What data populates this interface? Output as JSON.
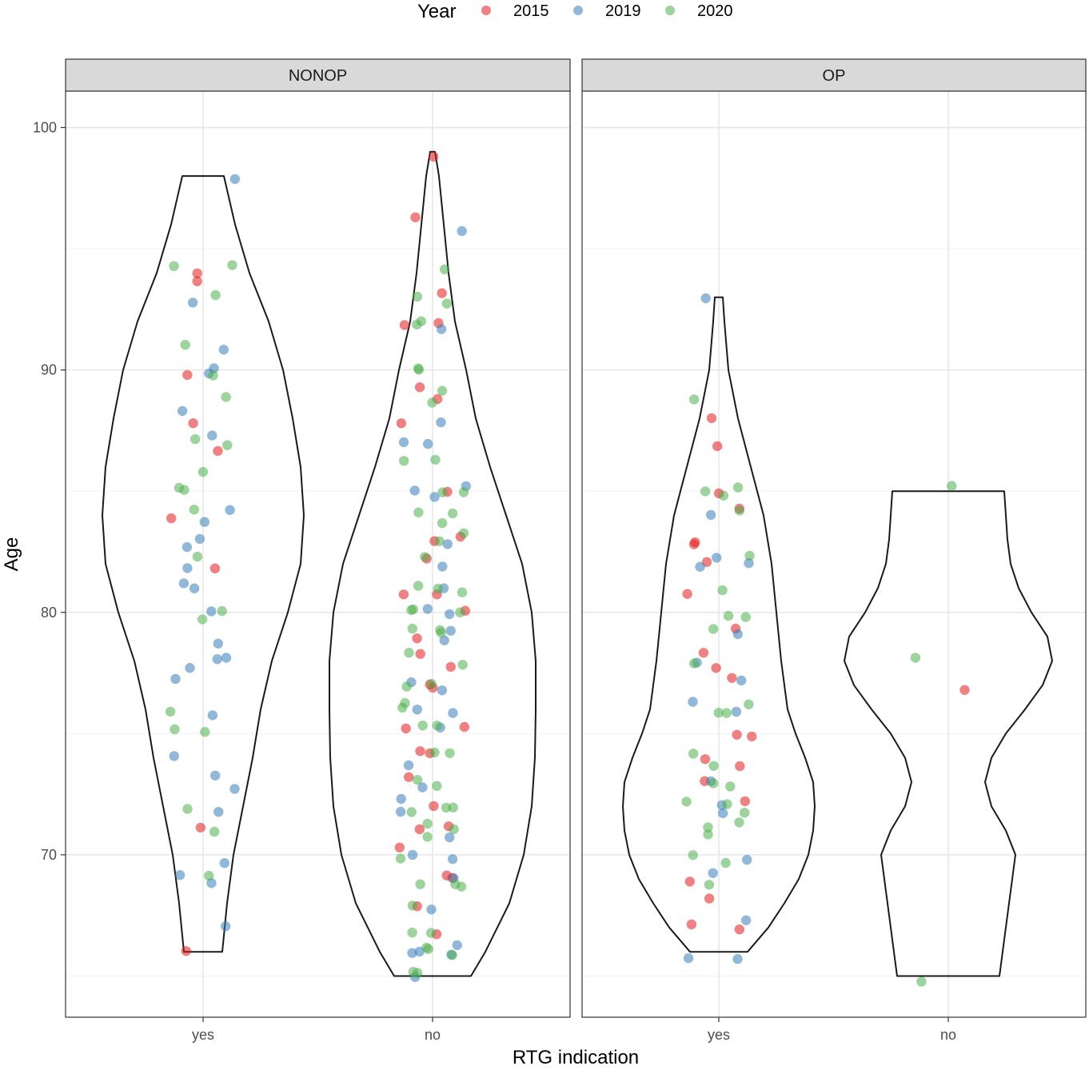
{
  "chart_data": {
    "type": "scatter",
    "subtype": "violin-with-jitter",
    "xlabel": "RTG indication",
    "ylabel": "Age",
    "categories": [
      "yes",
      "no"
    ],
    "ylim": [
      63.3,
      101.5
    ],
    "yticks": [
      70,
      80,
      90,
      100
    ],
    "grid": true,
    "legend": {
      "title": "Year",
      "placement": "top",
      "entries": [
        {
          "name": "2015",
          "color": "#e41a1c"
        },
        {
          "name": "2019",
          "color": "#377eb8"
        },
        {
          "name": "2020",
          "color": "#4daf4a"
        }
      ]
    },
    "facets": [
      {
        "label": "NONOP",
        "violins": [
          {
            "category": "yes",
            "min": 66,
            "max": 98
          },
          {
            "category": "no",
            "min": 65,
            "max": 99
          }
        ],
        "points": {
          "yes": {
            "2015": [
              94,
              88,
              90,
              87,
              84,
              82,
              71,
              66,
              94
            ],
            "2019": [
              98,
              93,
              91,
              90,
              90,
              88,
              87,
              84,
              84,
              83,
              83,
              82,
              81,
              81,
              80,
              79,
              78,
              78,
              78,
              77,
              76,
              74,
              73,
              73,
              72,
              70,
              69,
              69,
              67
            ],
            "2020": [
              94,
              93,
              94,
              91,
              90,
              89,
              87,
              87,
              86,
              85,
              85,
              84,
              82,
              80,
              80,
              76,
              75,
              75,
              72,
              71,
              69
            ]
          },
          "no": {
            "2015": [
              99,
              96,
              93,
              92,
              92,
              89,
              89,
              88,
              85,
              83,
              83,
              82,
              81,
              81,
              80,
              79,
              78,
              78,
              77,
              77,
              75,
              75,
              74,
              74,
              73,
              72,
              71,
              71,
              70,
              69,
              69,
              68,
              67
            ],
            "2019": [
              96,
              92,
              88,
              87,
              87,
              85,
              85,
              85,
              83,
              82,
              81,
              80,
              80,
              79,
              79,
              77,
              77,
              76,
              76,
              75,
              74,
              73,
              72,
              72,
              71,
              70,
              70,
              69,
              68,
              66,
              66,
              66,
              66,
              65
            ],
            "2020": [
              94,
              93,
              93,
              92,
              92,
              90,
              90,
              89,
              89,
              86,
              86,
              85,
              85,
              84,
              84,
              84,
              83,
              83,
              82,
              81,
              81,
              81,
              80,
              80,
              80,
              79,
              79,
              79,
              78,
              78,
              77,
              77,
              76,
              76,
              75,
              75,
              74,
              74,
              73,
              73,
              72,
              72,
              72,
              71,
              71,
              71,
              70,
              69,
              69,
              69,
              68,
              67,
              67,
              66,
              66,
              66,
              65,
              65
            ]
          }
        }
      },
      {
        "label": "OP",
        "violins": [
          {
            "category": "yes",
            "min": 66,
            "max": 93
          },
          {
            "category": "no",
            "min": 65,
            "max": 85
          }
        ],
        "points": {
          "yes": {
            "2015": [
              88,
              87,
              85,
              84,
              83,
              83,
              82,
              81,
              79,
              78,
              78,
              77,
              75,
              75,
              74,
              74,
              73,
              72,
              69,
              68,
              67,
              67
            ],
            "2019": [
              93,
              84,
              82,
              82,
              82,
              79,
              78,
              77,
              76,
              76,
              73,
              72,
              72,
              70,
              69,
              67,
              66,
              66
            ],
            "2020": [
              89,
              85,
              85,
              85,
              84,
              82,
              81,
              80,
              80,
              79,
              78,
              76,
              76,
              76,
              74,
              74,
              73,
              73,
              72,
              72,
              72,
              71,
              71,
              71,
              70,
              70,
              69
            ]
          },
          "no": {
            "2015": [
              77
            ],
            "2019": [],
            "2020": [
              85,
              78,
              65
            ]
          }
        }
      }
    ]
  }
}
